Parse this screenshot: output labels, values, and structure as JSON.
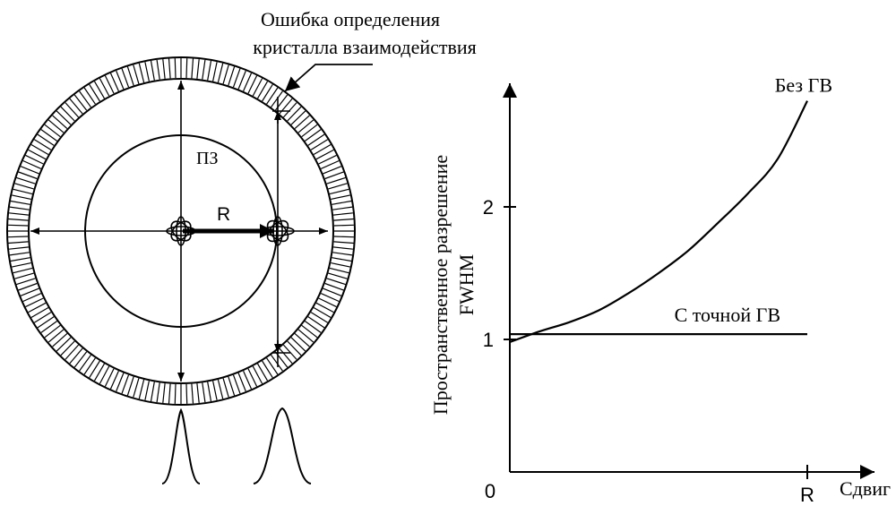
{
  "left_diagram": {
    "error_label_line1": "Ошибка определения",
    "error_label_line2": "кристалла взаимодействия",
    "fov_label": "ПЗ",
    "shift_label": "R"
  },
  "chart_data": {
    "type": "line",
    "ylabel_line1": "Пространственное разрешение",
    "ylabel_line2": "FWHM",
    "xlabel": "Сдвиг",
    "x_ticks": [
      {
        "value": 0,
        "label": "0"
      },
      {
        "value": 1,
        "label": "R"
      }
    ],
    "y_ticks": [
      {
        "value": 1,
        "label": "1"
      },
      {
        "value": 2,
        "label": "2"
      }
    ],
    "xlim": [
      0,
      1.11
    ],
    "ylim": [
      0,
      2.95
    ],
    "series": [
      {
        "name": "Без ГВ",
        "x": [
          0,
          0.1,
          0.2,
          0.3,
          0.4,
          0.5,
          0.6,
          0.7,
          0.8,
          0.9,
          1.0
        ],
        "y": [
          0.98,
          1.06,
          1.13,
          1.22,
          1.35,
          1.5,
          1.67,
          1.88,
          2.1,
          2.36,
          2.8
        ]
      },
      {
        "name": "С точной ГВ",
        "x": [
          0,
          1.0
        ],
        "y": [
          1.04,
          1.04
        ]
      }
    ]
  }
}
